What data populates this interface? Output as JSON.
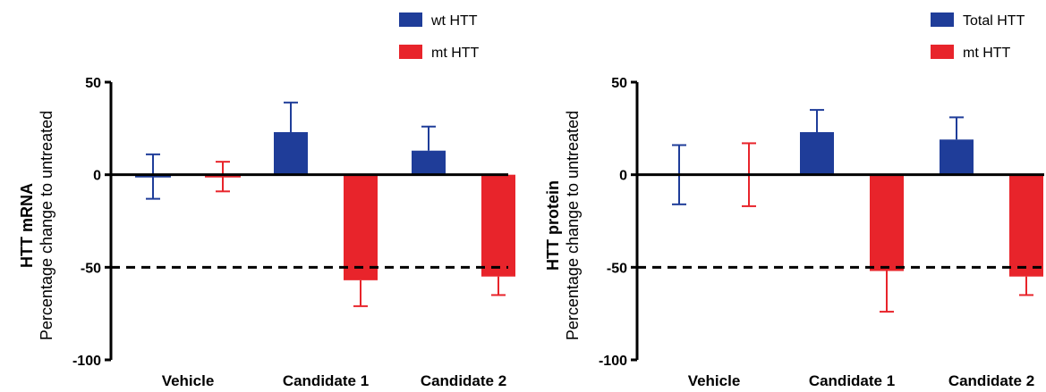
{
  "chart_data": [
    {
      "type": "bar",
      "ylabel": "HTT mRNA",
      "ylabel_sub": "Percentage change to untreated",
      "categories": [
        "Vehicle",
        "Candidate 1",
        "Candidate 2"
      ],
      "ylim": [
        -100,
        50
      ],
      "yticks": [
        50,
        0,
        -50,
        -100
      ],
      "reference_line": -50,
      "legend_position": "top-right",
      "series": [
        {
          "name": "wt HTT",
          "color": "#1f3d99",
          "values": [
            -1,
            23,
            13
          ],
          "errors": [
            12,
            16,
            13
          ]
        },
        {
          "name": "mt HTT",
          "color": "#e8242b",
          "values": [
            -1,
            -57,
            -55
          ],
          "errors": [
            8,
            14,
            10
          ]
        }
      ]
    },
    {
      "type": "bar",
      "ylabel": "HTT protein",
      "ylabel_sub": "Percentage change to untreated",
      "categories": [
        "Vehicle",
        "Candidate 1",
        "Candidate 2"
      ],
      "ylim": [
        -100,
        50
      ],
      "yticks": [
        50,
        0,
        -50,
        -100
      ],
      "reference_line": -50,
      "legend_position": "top-right",
      "series": [
        {
          "name": "Total HTT",
          "color": "#1f3d99",
          "values": [
            0,
            23,
            19
          ],
          "errors": [
            16,
            12,
            12
          ]
        },
        {
          "name": "mt HTT",
          "color": "#e8242b",
          "values": [
            0,
            -52,
            -55
          ],
          "errors": [
            17,
            22,
            10
          ]
        }
      ]
    }
  ]
}
